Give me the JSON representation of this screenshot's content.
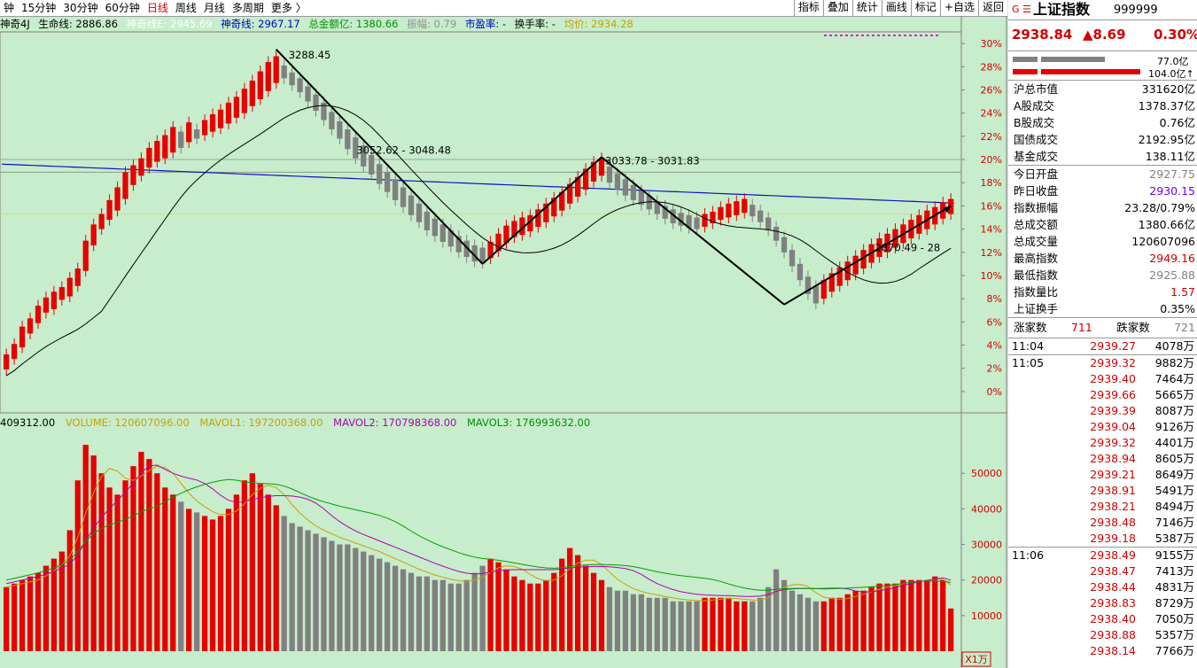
{
  "topbar": {
    "periods": [
      "钟",
      "15分钟",
      "30分钟",
      "60分钟",
      "日线",
      "周线",
      "月线",
      "多周期",
      "更多 〉"
    ],
    "active_period": "日线",
    "tools": [
      "指标",
      "叠加",
      "统计",
      "画线",
      "标记",
      "+自选",
      "返回"
    ]
  },
  "indicator_line": {
    "name": "神奇4J",
    "life_line": "生命线: 2886.86",
    "line_e": "神奇线E: 2945.69",
    "line_b": "神奇线: 2967.17",
    "amount": "总金额亿: 1380.66",
    "amplitude": "振幅: 0.79",
    "pe": "市盈率: -",
    "turnover": "换手率: -",
    "avg": "均价: 2934.28"
  },
  "price_axis": [
    "30%",
    "28%",
    "26%",
    "24%",
    "22%",
    "20%",
    "18%",
    "16%",
    "14%",
    "12%",
    "10%",
    "8%",
    "6%",
    "4%",
    "2%",
    "0%"
  ],
  "annotations": {
    "high": "3288.45",
    "a": "3052.62 - 3048.48",
    "b": "3033.78 - 3031.83",
    "c": "2870.49 - 28"
  },
  "volume_line": {
    "left": "409312.00",
    "volume": "VOLUME: 120607096.00",
    "mavol1": "MAVOL1: 197200368.00",
    "mavol2": "MAVOL2: 170798368.00",
    "mavol3": "MAVOL3: 176993632.00"
  },
  "volume_axis": [
    "50000",
    "40000",
    "30000",
    "20000",
    "10000"
  ],
  "volume_unit": "X1万",
  "sidebar": {
    "icons": "G ☰",
    "name": "上证指数",
    "code": "999999",
    "price": "2938.84",
    "change": "▲8.69",
    "pct": "0.30%",
    "bar1": "77.0亿",
    "bar2": "104.0亿↑",
    "stats1": [
      {
        "label": "沪总市值",
        "value": "331620亿",
        "color": "black"
      },
      {
        "label": "A股成交",
        "value": "1378.37亿",
        "color": "black"
      },
      {
        "label": "B股成交",
        "value": "0.76亿",
        "color": "black"
      },
      {
        "label": "国债成交",
        "value": "2192.95亿",
        "color": "black"
      },
      {
        "label": "基金成交",
        "value": "138.11亿",
        "color": "black"
      }
    ],
    "stats2": [
      {
        "label": "今日开盘",
        "value": "2927.75",
        "color": "gray"
      },
      {
        "label": "昨日收盘",
        "value": "2930.15",
        "color": "purple"
      },
      {
        "label": "指数振幅",
        "value": "23.28/0.79%",
        "color": "black"
      },
      {
        "label": "总成交额",
        "value": "1380.66亿",
        "color": "black"
      },
      {
        "label": "总成交量",
        "value": "120607096",
        "color": "black"
      },
      {
        "label": "最高指数",
        "value": "2949.16",
        "color": "red"
      },
      {
        "label": "最低指数",
        "value": "2925.88",
        "color": "gray"
      },
      {
        "label": "指数量比",
        "value": "1.57",
        "color": "red"
      },
      {
        "label": "上证换手",
        "value": "0.35%",
        "color": "black"
      }
    ],
    "breadth": {
      "up_label": "涨家数",
      "up": "711",
      "down_label": "跌家数",
      "down": "721"
    },
    "ticks": [
      {
        "time": "11:04",
        "price": "2939.27",
        "vol": "4078万"
      },
      {
        "time": "11:05",
        "price": "2939.32",
        "vol": "9882万"
      },
      {
        "time": "",
        "price": "2939.40",
        "vol": "7464万"
      },
      {
        "time": "",
        "price": "2939.66",
        "vol": "5665万"
      },
      {
        "time": "",
        "price": "2939.39",
        "vol": "8087万"
      },
      {
        "time": "",
        "price": "2939.04",
        "vol": "9126万"
      },
      {
        "time": "",
        "price": "2939.32",
        "vol": "4401万"
      },
      {
        "time": "",
        "price": "2938.94",
        "vol": "8605万"
      },
      {
        "time": "",
        "price": "2939.21",
        "vol": "8649万"
      },
      {
        "time": "",
        "price": "2938.91",
        "vol": "5491万"
      },
      {
        "time": "",
        "price": "2938.21",
        "vol": "8494万"
      },
      {
        "time": "",
        "price": "2938.48",
        "vol": "7146万"
      },
      {
        "time": "",
        "price": "2939.18",
        "vol": "5387万"
      },
      {
        "time": "11:06",
        "price": "2938.49",
        "vol": "9155万"
      },
      {
        "time": "",
        "price": "2938.47",
        "vol": "7413万"
      },
      {
        "time": "",
        "price": "2938.44",
        "vol": "4831万"
      },
      {
        "time": "",
        "price": "2938.83",
        "vol": "8729万"
      },
      {
        "time": "",
        "price": "2938.40",
        "vol": "7050万"
      },
      {
        "time": "",
        "price": "2938.88",
        "vol": "5357万"
      },
      {
        "time": "",
        "price": "2938.14",
        "vol": "7766万"
      }
    ]
  },
  "colors": {
    "up": "#e60000",
    "down": "#808080",
    "bg": "#c7edcc",
    "ma": "#000000",
    "long_ma": "#1010c0",
    "vol_ma1": "#c8a000",
    "vol_ma2": "#b000b0",
    "vol_ma3": "#00a000"
  },
  "chart_data": {
    "type": "candlestick",
    "y_unit": "% change",
    "ylim": [
      -1,
      31
    ],
    "candles": [
      [
        1.9,
        3.2
      ],
      [
        2.8,
        4.1
      ],
      [
        3.8,
        5.6
      ],
      [
        5.0,
        6.3
      ],
      [
        5.9,
        7.4
      ],
      [
        6.8,
        8.1
      ],
      [
        7.1,
        8.6
      ],
      [
        7.9,
        9.0
      ],
      [
        8.2,
        9.8
      ],
      [
        9.1,
        10.6
      ],
      [
        10.4,
        13.0
      ],
      [
        12.6,
        14.4
      ],
      [
        14.0,
        15.3
      ],
      [
        14.8,
        16.5
      ],
      [
        15.6,
        17.6
      ],
      [
        16.6,
        18.9
      ],
      [
        17.8,
        19.5
      ],
      [
        18.6,
        20.1
      ],
      [
        19.3,
        21.0
      ],
      [
        19.8,
        21.6
      ],
      [
        20.1,
        22.1
      ],
      [
        20.6,
        22.8
      ],
      [
        21.0,
        22.4
      ],
      [
        21.5,
        23.2
      ],
      [
        21.8,
        22.6
      ],
      [
        22.1,
        23.4
      ],
      [
        22.4,
        23.9
      ],
      [
        22.7,
        24.3
      ],
      [
        23.1,
        24.9
      ],
      [
        23.6,
        25.4
      ],
      [
        24.0,
        26.1
      ],
      [
        24.6,
        26.8
      ],
      [
        25.2,
        27.6
      ],
      [
        25.9,
        28.4
      ],
      [
        26.6,
        28.9
      ],
      [
        27.0,
        28.1
      ],
      [
        26.4,
        27.5
      ],
      [
        25.8,
        27.0
      ],
      [
        25.0,
        26.3
      ],
      [
        24.2,
        25.6
      ],
      [
        23.4,
        24.9
      ],
      [
        22.6,
        24.1
      ],
      [
        21.8,
        23.3
      ],
      [
        20.9,
        22.6
      ],
      [
        20.1,
        21.9
      ],
      [
        19.4,
        21.2
      ],
      [
        18.7,
        20.4
      ],
      [
        17.9,
        19.6
      ],
      [
        17.2,
        18.9
      ],
      [
        16.5,
        18.3
      ],
      [
        15.9,
        17.6
      ],
      [
        15.2,
        16.9
      ],
      [
        14.6,
        16.2
      ],
      [
        13.9,
        15.5
      ],
      [
        13.4,
        14.9
      ],
      [
        12.9,
        14.4
      ],
      [
        12.5,
        13.9
      ],
      [
        12.0,
        13.4
      ],
      [
        11.6,
        13.0
      ],
      [
        11.2,
        12.6
      ],
      [
        11.1,
        12.4
      ],
      [
        11.5,
        12.9
      ],
      [
        12.1,
        13.6
      ],
      [
        12.8,
        14.3
      ],
      [
        13.3,
        14.7
      ],
      [
        13.5,
        15.0
      ],
      [
        13.8,
        15.2
      ],
      [
        14.2,
        15.7
      ],
      [
        14.6,
        16.2
      ],
      [
        15.1,
        16.7
      ],
      [
        15.6,
        17.2
      ],
      [
        16.2,
        17.9
      ],
      [
        16.8,
        18.5
      ],
      [
        17.4,
        19.2
      ],
      [
        18.1,
        19.8
      ],
      [
        18.6,
        20.1
      ],
      [
        18.0,
        19.4
      ],
      [
        17.4,
        18.8
      ],
      [
        16.9,
        18.3
      ],
      [
        16.5,
        17.8
      ],
      [
        16.1,
        17.3
      ],
      [
        15.7,
        16.9
      ],
      [
        15.3,
        16.4
      ],
      [
        14.9,
        16.0
      ],
      [
        14.5,
        15.7
      ],
      [
        14.3,
        15.4
      ],
      [
        14.1,
        15.2
      ],
      [
        14.0,
        15.0
      ],
      [
        14.2,
        15.3
      ],
      [
        14.5,
        15.5
      ],
      [
        14.8,
        15.9
      ],
      [
        15.0,
        16.2
      ],
      [
        15.2,
        16.4
      ],
      [
        15.4,
        16.6
      ],
      [
        15.1,
        16.1
      ],
      [
        14.6,
        15.6
      ],
      [
        13.9,
        15.0
      ],
      [
        13.0,
        14.2
      ],
      [
        12.0,
        13.3
      ],
      [
        10.8,
        12.2
      ],
      [
        9.6,
        11.0
      ],
      [
        8.4,
        9.9
      ],
      [
        7.6,
        9.1
      ],
      [
        8.0,
        9.6
      ],
      [
        8.6,
        10.2
      ],
      [
        9.1,
        10.7
      ],
      [
        9.6,
        11.2
      ],
      [
        10.1,
        11.7
      ],
      [
        10.6,
        12.2
      ],
      [
        11.1,
        12.7
      ],
      [
        11.6,
        13.2
      ],
      [
        12.0,
        13.6
      ],
      [
        12.4,
        14.0
      ],
      [
        12.8,
        14.4
      ],
      [
        13.2,
        14.8
      ],
      [
        13.6,
        15.2
      ],
      [
        14.0,
        15.6
      ],
      [
        14.4,
        15.9
      ],
      [
        14.9,
        16.3
      ],
      [
        15.3,
        16.6
      ]
    ],
    "volumes": [
      18,
      19,
      20,
      21,
      22,
      24,
      26,
      28,
      34,
      48,
      58,
      55,
      50,
      46,
      44,
      48,
      52,
      56,
      54,
      50,
      46,
      44,
      42,
      40,
      39,
      38,
      37,
      38,
      40,
      44,
      48,
      50,
      47,
      44,
      41,
      38,
      36,
      35,
      34,
      33,
      32,
      31,
      30,
      30,
      29,
      28,
      27,
      26,
      25,
      24,
      23,
      22,
      21,
      21,
      20,
      20,
      19,
      19,
      20,
      22,
      24,
      26,
      25,
      23,
      21,
      20,
      19,
      19,
      20,
      22,
      26,
      29,
      27,
      24,
      22,
      20,
      18,
      17,
      17,
      16,
      16,
      15,
      15,
      15,
      14,
      14,
      14,
      14,
      15,
      15,
      15,
      15,
      14,
      14,
      14,
      15,
      18,
      23,
      20,
      17,
      16,
      15,
      14,
      14,
      15,
      15,
      16,
      17,
      17,
      18,
      19,
      19,
      19,
      20,
      20,
      20,
      20,
      21,
      20,
      12
    ]
  }
}
